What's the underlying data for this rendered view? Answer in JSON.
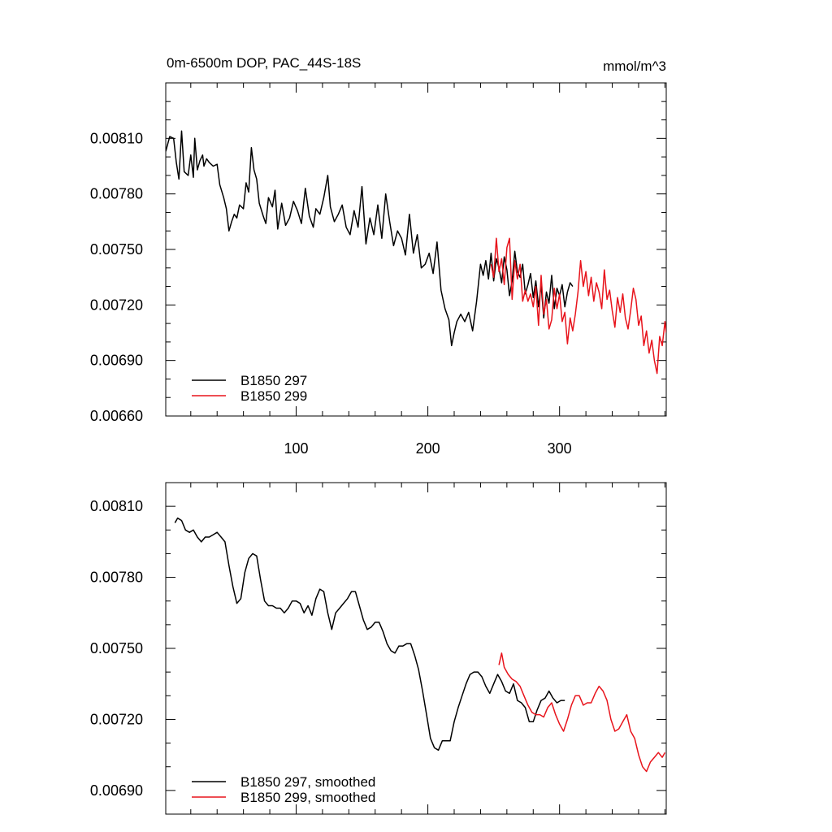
{
  "colors": {
    "series_297": "#000000",
    "series_299": "#e8141c",
    "axis": "#000000"
  },
  "chart_data": [
    {
      "type": "line",
      "title": "0m-6500m DOP, PAC_44S-18S",
      "units": "mmol/m^3",
      "xlim": [
        1,
        381
      ],
      "ylim": [
        0.0066,
        0.0084
      ],
      "yticks": [
        0.0066,
        0.0069,
        0.0072,
        0.0075,
        0.0078,
        0.0081
      ],
      "ytick_labels": [
        "0.00660",
        "0.00690",
        "0.00720",
        "0.00750",
        "0.00780",
        "0.00810"
      ],
      "xticks": [
        100,
        200,
        300
      ],
      "xtick_labels": [
        "100",
        "200",
        "300"
      ],
      "legend": {
        "position": "bottom-left",
        "entries": [
          "B1850 297",
          "B1850 299"
        ]
      },
      "series": [
        {
          "name": "B1850 297",
          "color": "#000000",
          "x": [
            1,
            4,
            7,
            9,
            11,
            13,
            15,
            18,
            20,
            22,
            23,
            25,
            27,
            29,
            30,
            32,
            34,
            37,
            40,
            42,
            45,
            47,
            49,
            51,
            53,
            55,
            57,
            60,
            62,
            64,
            66,
            68,
            70,
            72,
            75,
            77,
            79,
            82,
            84,
            86,
            89,
            92,
            95,
            98,
            101,
            104,
            107,
            110,
            113,
            115,
            118,
            121,
            124,
            126,
            129,
            132,
            135,
            138,
            141,
            144,
            147,
            150,
            153,
            156,
            159,
            162,
            165,
            168,
            171,
            174,
            177,
            180,
            183,
            186,
            189,
            192,
            195,
            198,
            201,
            204,
            207,
            210,
            213,
            216,
            218,
            220,
            222,
            225,
            228,
            231,
            234,
            237,
            240,
            242,
            244,
            246,
            248,
            250,
            252,
            254,
            256,
            258,
            260,
            262,
            264,
            266,
            268,
            270,
            272,
            274,
            276,
            278,
            280,
            282,
            284,
            286,
            288,
            290,
            292,
            294,
            296,
            298,
            300,
            302,
            304,
            306,
            308,
            310
          ],
          "y": [
            0.00803,
            0.00811,
            0.0081,
            0.00797,
            0.00788,
            0.00814,
            0.00792,
            0.0079,
            0.00801,
            0.00789,
            0.0081,
            0.00793,
            0.00798,
            0.00801,
            0.00795,
            0.00799,
            0.00797,
            0.00795,
            0.00796,
            0.00785,
            0.00778,
            0.00772,
            0.0076,
            0.00765,
            0.00769,
            0.00767,
            0.00774,
            0.00772,
            0.00786,
            0.00781,
            0.00805,
            0.00793,
            0.00788,
            0.00775,
            0.00768,
            0.00764,
            0.00778,
            0.00773,
            0.00782,
            0.00761,
            0.00775,
            0.00763,
            0.00767,
            0.00776,
            0.00771,
            0.00764,
            0.00783,
            0.00768,
            0.00762,
            0.00772,
            0.00769,
            0.00778,
            0.0079,
            0.00773,
            0.00765,
            0.00769,
            0.00774,
            0.00762,
            0.00758,
            0.00771,
            0.00762,
            0.00784,
            0.00753,
            0.00767,
            0.00758,
            0.00774,
            0.00756,
            0.0078,
            0.00765,
            0.00752,
            0.0076,
            0.00756,
            0.00747,
            0.00769,
            0.00748,
            0.00758,
            0.0074,
            0.00742,
            0.00748,
            0.00737,
            0.00754,
            0.00728,
            0.00718,
            0.00712,
            0.00698,
            0.00705,
            0.00711,
            0.00715,
            0.00711,
            0.00716,
            0.00706,
            0.00722,
            0.00742,
            0.00736,
            0.00744,
            0.00734,
            0.00748,
            0.00733,
            0.00745,
            0.0074,
            0.00732,
            0.00746,
            0.00739,
            0.00725,
            0.00733,
            0.00749,
            0.00738,
            0.00735,
            0.00742,
            0.00726,
            0.00731,
            0.00737,
            0.00724,
            0.00733,
            0.00719,
            0.00731,
            0.00713,
            0.00727,
            0.00721,
            0.00736,
            0.00718,
            0.00729,
            0.00725,
            0.00731,
            0.00719,
            0.00727,
            0.00732,
            0.0073
          ]
        },
        {
          "name": "B1850 299",
          "color": "#e8141c",
          "x": [
            248,
            250,
            252,
            254,
            256,
            258,
            260,
            262,
            264,
            266,
            268,
            270,
            272,
            274,
            276,
            278,
            280,
            282,
            284,
            286,
            288,
            290,
            292,
            294,
            296,
            298,
            300,
            302,
            304,
            306,
            308,
            310,
            312,
            314,
            316,
            318,
            320,
            322,
            324,
            326,
            328,
            330,
            332,
            334,
            336,
            338,
            340,
            342,
            344,
            346,
            348,
            350,
            352,
            354,
            356,
            358,
            360,
            362,
            364,
            366,
            368,
            370,
            372,
            374,
            376,
            378,
            380,
            381
          ],
          "y": [
            0.00742,
            0.00735,
            0.00756,
            0.00738,
            0.00745,
            0.00731,
            0.00751,
            0.00756,
            0.00723,
            0.00744,
            0.00734,
            0.00742,
            0.00722,
            0.00728,
            0.00722,
            0.00726,
            0.00719,
            0.0073,
            0.00709,
            0.00736,
            0.00715,
            0.00723,
            0.00707,
            0.00712,
            0.00729,
            0.00718,
            0.00726,
            0.00711,
            0.00716,
            0.00699,
            0.00713,
            0.00706,
            0.00715,
            0.00727,
            0.00744,
            0.0073,
            0.00738,
            0.00725,
            0.00735,
            0.00722,
            0.00732,
            0.00727,
            0.00718,
            0.00739,
            0.00723,
            0.00728,
            0.00717,
            0.00708,
            0.00724,
            0.00716,
            0.00726,
            0.00713,
            0.00707,
            0.00717,
            0.00729,
            0.00723,
            0.00709,
            0.00714,
            0.00698,
            0.00706,
            0.00694,
            0.00701,
            0.0069,
            0.00683,
            0.00703,
            0.00698,
            0.00711,
            0.00705
          ]
        }
      ]
    },
    {
      "type": "line",
      "xlim": [
        1,
        381
      ],
      "ylim": [
        0.0068,
        0.0082
      ],
      "yticks": [
        0.0069,
        0.0072,
        0.0075,
        0.0078,
        0.0081
      ],
      "ytick_labels": [
        "0.00690",
        "0.00720",
        "0.00750",
        "0.00780",
        "0.00810"
      ],
      "xticks": [
        100,
        200,
        300
      ],
      "legend": {
        "position": "bottom-left",
        "entries": [
          "B1850 297, smoothed",
          "B1850 299, smoothed"
        ]
      },
      "series": [
        {
          "name": "B1850 297, smoothed",
          "color": "#000000",
          "x": [
            8,
            10,
            13,
            16,
            19,
            22,
            25,
            28,
            31,
            34,
            37,
            40,
            43,
            46,
            49,
            52,
            55,
            58,
            61,
            64,
            67,
            70,
            73,
            76,
            79,
            82,
            85,
            88,
            91,
            94,
            97,
            100,
            103,
            106,
            109,
            112,
            115,
            118,
            121,
            124,
            127,
            130,
            133,
            136,
            139,
            142,
            145,
            148,
            151,
            154,
            157,
            160,
            163,
            166,
            169,
            172,
            175,
            178,
            181,
            184,
            187,
            190,
            193,
            196,
            199,
            202,
            205,
            208,
            211,
            214,
            217,
            220,
            223,
            226,
            229,
            232,
            235,
            238,
            241,
            244,
            247,
            250,
            253,
            256,
            259,
            262,
            265,
            268,
            271,
            274,
            277,
            280,
            283,
            286,
            289,
            292,
            295,
            298,
            301,
            304
          ],
          "y": [
            0.00803,
            0.00805,
            0.00804,
            0.008,
            0.00799,
            0.008,
            0.00797,
            0.00795,
            0.00797,
            0.00797,
            0.00798,
            0.00799,
            0.00797,
            0.00795,
            0.00785,
            0.00776,
            0.00769,
            0.00771,
            0.00782,
            0.00788,
            0.0079,
            0.00789,
            0.00779,
            0.0077,
            0.00768,
            0.00768,
            0.00767,
            0.00767,
            0.00765,
            0.00767,
            0.0077,
            0.0077,
            0.00769,
            0.00765,
            0.00768,
            0.00764,
            0.00771,
            0.00775,
            0.00774,
            0.00765,
            0.00758,
            0.00765,
            0.00767,
            0.00769,
            0.00771,
            0.00774,
            0.00774,
            0.00768,
            0.00762,
            0.00758,
            0.00759,
            0.00761,
            0.00761,
            0.00757,
            0.00752,
            0.00749,
            0.00748,
            0.00751,
            0.00751,
            0.00752,
            0.00752,
            0.00747,
            0.00741,
            0.00732,
            0.00722,
            0.00712,
            0.00708,
            0.00707,
            0.00711,
            0.00711,
            0.00711,
            0.00719,
            0.00725,
            0.0073,
            0.00735,
            0.00739,
            0.0074,
            0.0074,
            0.00738,
            0.00734,
            0.00731,
            0.00735,
            0.00739,
            0.00736,
            0.00732,
            0.00731,
            0.00735,
            0.00728,
            0.00727,
            0.00725,
            0.00719,
            0.00719,
            0.00724,
            0.00728,
            0.00729,
            0.00732,
            0.00729,
            0.00727,
            0.00728,
            0.00728
          ]
        },
        {
          "name": "B1850 299, smoothed",
          "color": "#e8141c",
          "x": [
            254,
            256,
            258,
            261,
            264,
            267,
            270,
            273,
            276,
            279,
            282,
            285,
            288,
            291,
            294,
            297,
            300,
            303,
            306,
            309,
            312,
            315,
            318,
            321,
            324,
            327,
            330,
            333,
            336,
            339,
            342,
            345,
            348,
            351,
            354,
            357,
            360,
            363,
            366,
            369,
            372,
            375,
            378,
            380
          ],
          "y": [
            0.00743,
            0.00748,
            0.00742,
            0.00739,
            0.00737,
            0.00736,
            0.00734,
            0.0073,
            0.00726,
            0.00723,
            0.00722,
            0.00722,
            0.00721,
            0.00725,
            0.00727,
            0.00722,
            0.00718,
            0.00715,
            0.0072,
            0.00726,
            0.0073,
            0.0073,
            0.00726,
            0.00727,
            0.00727,
            0.00731,
            0.00734,
            0.00732,
            0.00728,
            0.0072,
            0.00715,
            0.00716,
            0.00719,
            0.00722,
            0.00715,
            0.00712,
            0.00705,
            0.007,
            0.00698,
            0.00702,
            0.00704,
            0.00706,
            0.00704,
            0.00706
          ]
        }
      ]
    }
  ]
}
